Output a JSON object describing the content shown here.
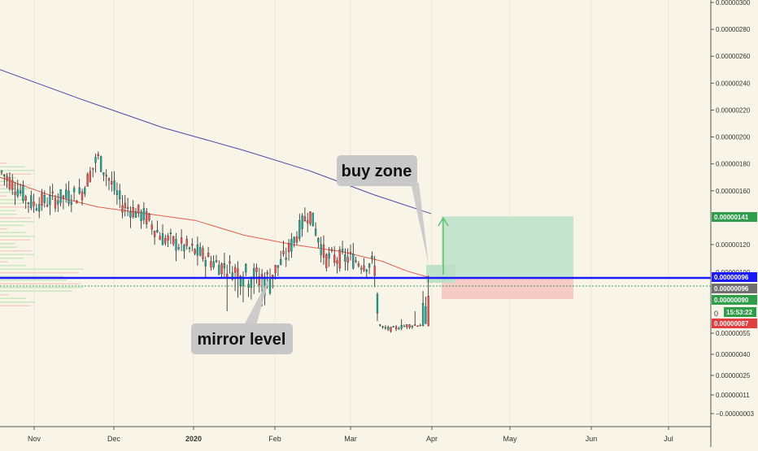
{
  "chart_data": {
    "type": "candlestick",
    "price_axis": {
      "tick_labels": [
        "0.00000300",
        "0.00000280",
        "0.00000260",
        "0.00000240",
        "0.00000220",
        "0.00000200",
        "0.00000180",
        "0.00000160",
        "0.00000120",
        "0.00000055",
        "0.00000040",
        "0.00000025",
        "0.00000011",
        "−0.00000003"
      ],
      "tick_values": [
        300,
        280,
        260,
        240,
        220,
        200,
        180,
        160,
        120,
        55,
        40,
        25,
        11,
        -3
      ],
      "partial_label": "0.00000100",
      "clipped_label": "0"
    },
    "time_axis": {
      "labels": [
        "Nov",
        "Dec",
        "2020",
        "Feb",
        "Mar",
        "Apr",
        "May",
        "Jun",
        "Jul"
      ]
    },
    "price_badges": [
      {
        "value": "0.00000141",
        "color": "#2e9e4a"
      },
      {
        "value": "0.00000096",
        "color": "#1a1aff"
      },
      {
        "value": "0.00000096",
        "color": "#707070"
      },
      {
        "value": "0.00000090",
        "color": "#2e9e4a"
      },
      {
        "value": "15:53:22",
        "color": "#2e9e4a"
      },
      {
        "value": "0.00000087",
        "color": "#e04040"
      }
    ],
    "levels": {
      "mirror_level": 96,
      "current_price": 90
    },
    "position": {
      "entry": 96,
      "target": 141,
      "stop": 87
    },
    "annotations": [
      {
        "text": "buy zone"
      },
      {
        "text": "mirror level"
      }
    ],
    "series": [
      {
        "color": "#4a4aa8",
        "values_approx": [
          [
            0,
            250
          ],
          [
            100,
            228
          ],
          [
            200,
            207
          ],
          [
            300,
            190
          ],
          [
            380,
            175
          ],
          [
            460,
            157
          ],
          [
            530,
            143
          ]
        ]
      },
      {
        "color": "#e06050",
        "values_approx": [
          [
            0,
            170
          ],
          [
            60,
            157
          ],
          [
            120,
            148
          ],
          [
            180,
            143
          ],
          [
            240,
            138
          ],
          [
            300,
            127
          ],
          [
            360,
            120
          ],
          [
            420,
            115
          ],
          [
            470,
            108
          ],
          [
            500,
            101
          ],
          [
            530,
            96
          ]
        ]
      }
    ],
    "colors": {
      "up": "#26a69a",
      "down": "#ef5350",
      "background": "#f8f5e8"
    }
  }
}
